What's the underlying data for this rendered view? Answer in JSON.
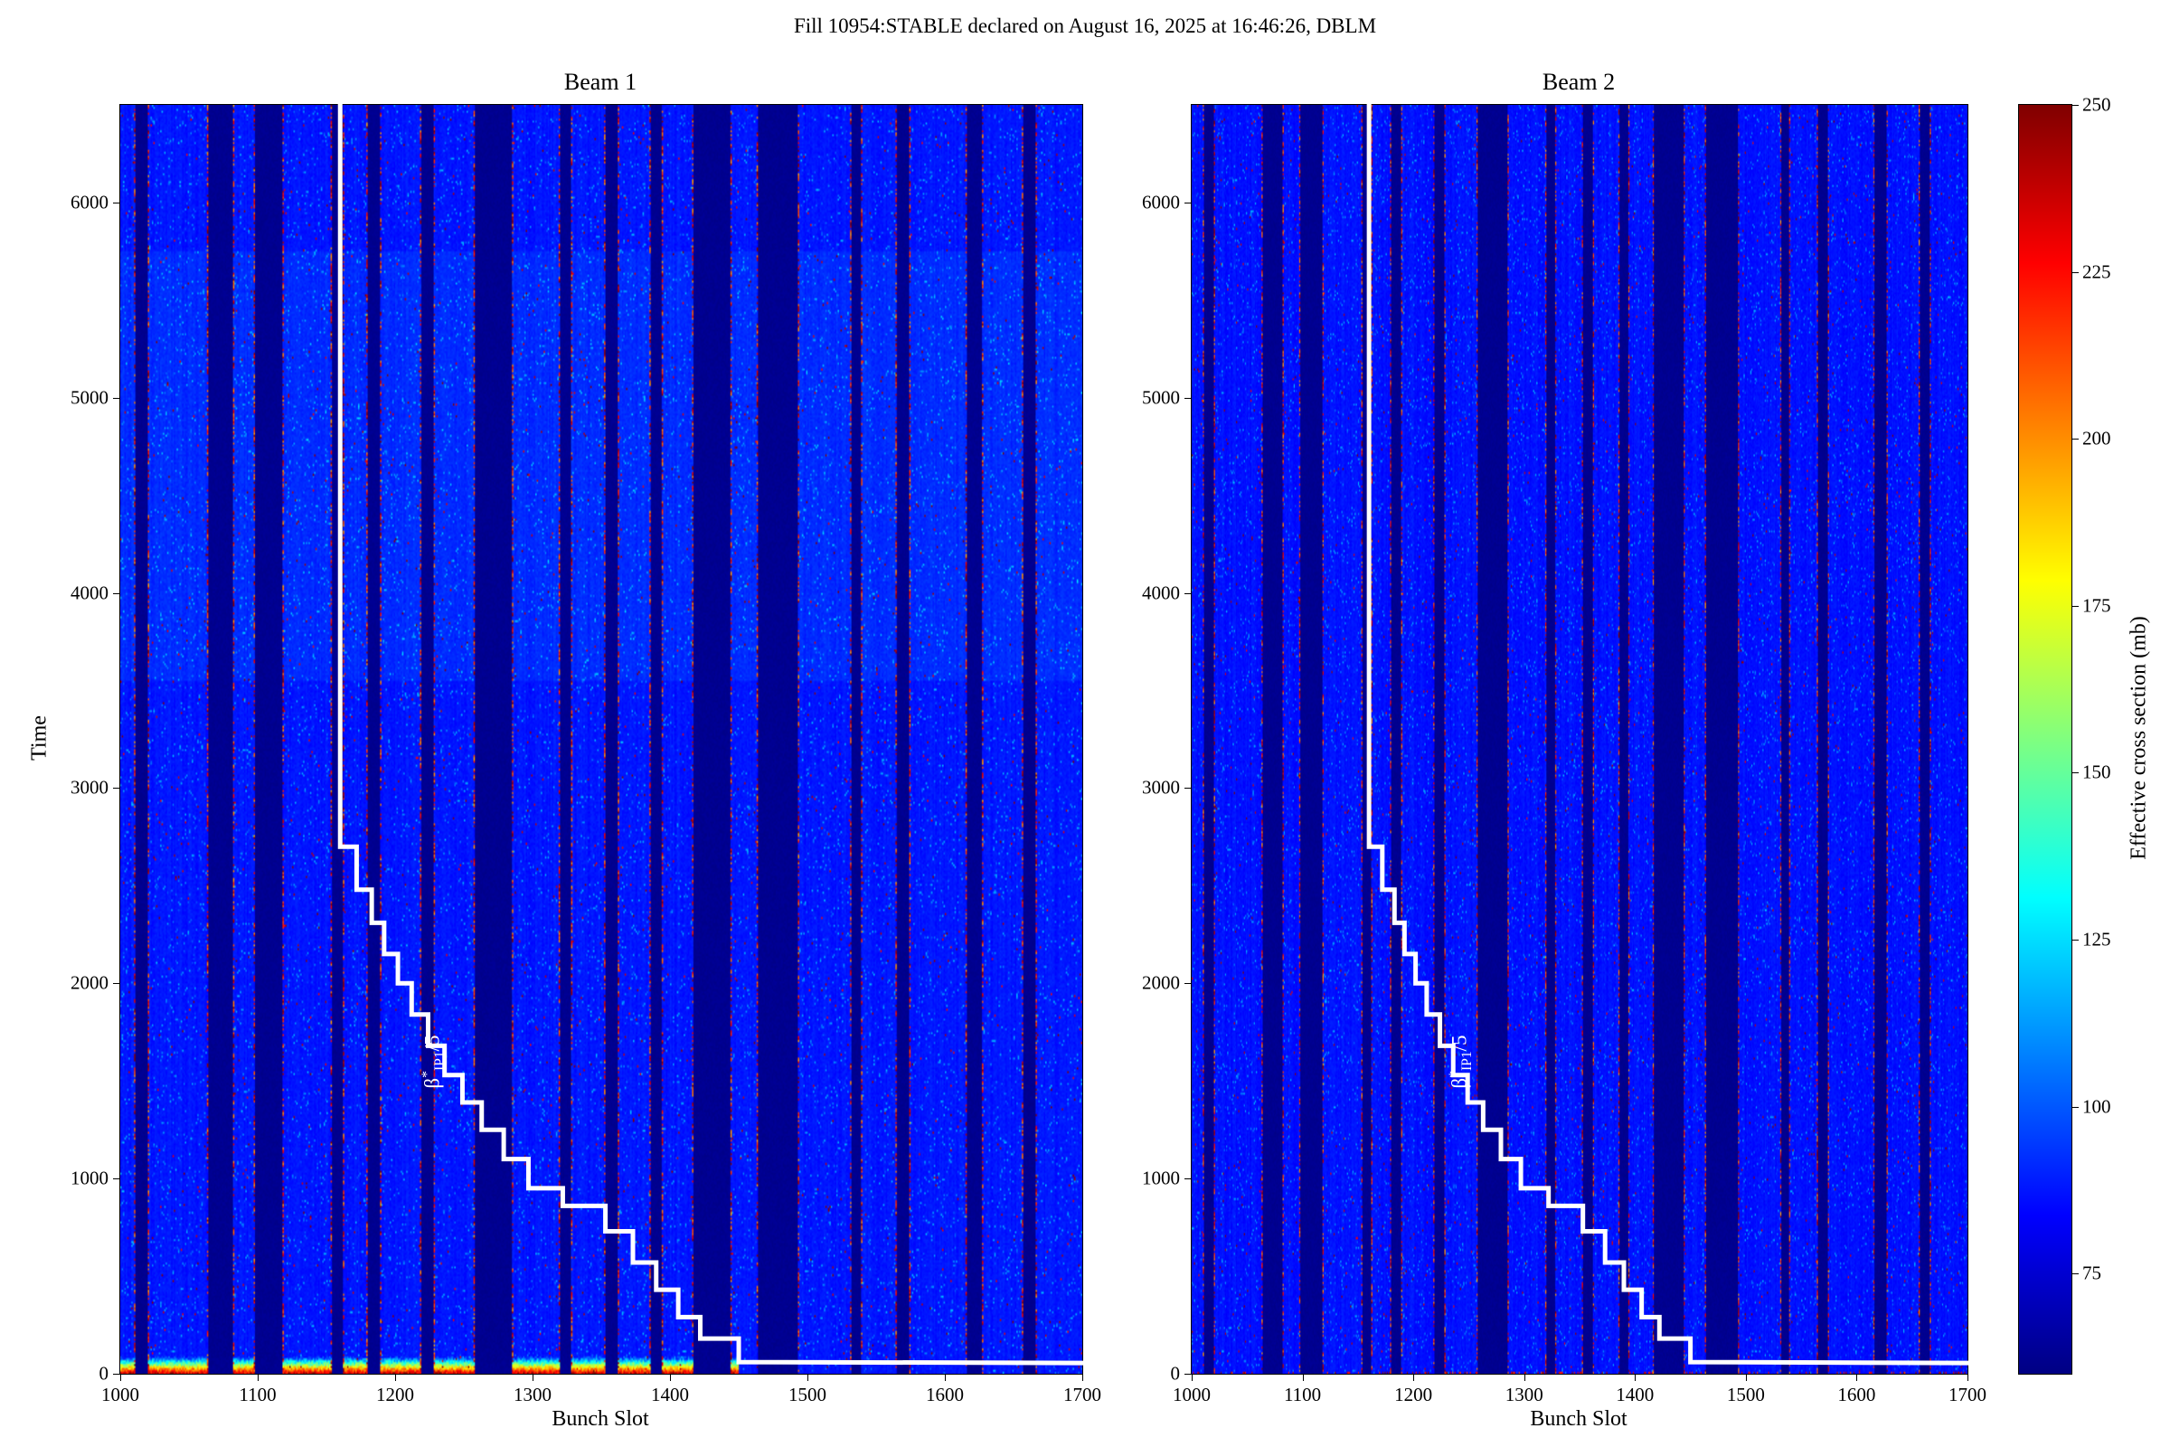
{
  "figure": {
    "suptitle": "Fill 10954:STABLE declared on August 16, 2025 at 16:46:26, DBLM",
    "background": "#ffffff"
  },
  "axes": {
    "x": {
      "label": "Bunch Slot",
      "min": 1000,
      "max": 1700,
      "ticks": [
        1000,
        1100,
        1200,
        1300,
        1400,
        1500,
        1600,
        1700
      ]
    },
    "y": {
      "label": "Time",
      "min": 0,
      "max": 6500,
      "ticks": [
        0,
        1000,
        2000,
        3000,
        4000,
        5000,
        6000
      ]
    }
  },
  "colorbar": {
    "label": "Effective cross section (mb)",
    "min": 60,
    "max": 250,
    "ticks": [
      75,
      100,
      125,
      150,
      175,
      200,
      225,
      250
    ],
    "colormap": "jet",
    "stops": [
      [
        0,
        "#000083"
      ],
      [
        0.125,
        "#0000ff"
      ],
      [
        0.375,
        "#00ffff"
      ],
      [
        0.625,
        "#ffff00"
      ],
      [
        0.875,
        "#ff0000"
      ],
      [
        1,
        "#800000"
      ]
    ]
  },
  "chart_data": [
    {
      "type": "heatmap",
      "title": "Beam 1",
      "xlabel": "Bunch Slot",
      "ylabel": "Time",
      "xlim": [
        1000,
        1700
      ],
      "ylim": [
        0,
        6500
      ],
      "value_label": "Effective cross section (mb)",
      "vmin": 60,
      "vmax": 250,
      "colormap": "jet",
      "base_value": 86,
      "gap_value": 62,
      "bunch_gaps": [
        [
          1011,
          1019
        ],
        [
          1064,
          1081
        ],
        [
          1098,
          1117
        ],
        [
          1154,
          1161
        ],
        [
          1180,
          1188
        ],
        [
          1219,
          1227
        ],
        [
          1258,
          1284
        ],
        [
          1320,
          1327
        ],
        [
          1353,
          1361
        ],
        [
          1386,
          1393
        ],
        [
          1417,
          1443
        ],
        [
          1464,
          1492
        ],
        [
          1532,
          1538
        ],
        [
          1565,
          1573
        ],
        [
          1616,
          1626
        ],
        [
          1657,
          1665
        ]
      ],
      "hot_bottom": {
        "max_time": 115,
        "max_slot": 1450,
        "peak_value": 258,
        "fade_per_time_unit": 1.8
      },
      "band_boost": {
        "time_range": [
          3550,
          5750
        ],
        "amount": 3
      },
      "bottom_speckle": false,
      "overlay_line": {
        "color": "#ffffff",
        "points": [
          [
            1160,
            6500
          ],
          [
            1160,
            2700
          ],
          [
            1172,
            2700
          ],
          [
            1172,
            2480
          ],
          [
            1183,
            2480
          ],
          [
            1183,
            2310
          ],
          [
            1192,
            2310
          ],
          [
            1192,
            2150
          ],
          [
            1202,
            2150
          ],
          [
            1202,
            2000
          ],
          [
            1212,
            2000
          ],
          [
            1212,
            1840
          ],
          [
            1224,
            1840
          ],
          [
            1224,
            1680
          ],
          [
            1236,
            1680
          ],
          [
            1236,
            1530
          ],
          [
            1249,
            1530
          ],
          [
            1249,
            1390
          ],
          [
            1263,
            1390
          ],
          [
            1263,
            1250
          ],
          [
            1279,
            1250
          ],
          [
            1279,
            1100
          ],
          [
            1297,
            1100
          ],
          [
            1297,
            950
          ],
          [
            1322,
            950
          ],
          [
            1322,
            860
          ],
          [
            1353,
            860
          ],
          [
            1353,
            730
          ],
          [
            1373,
            730
          ],
          [
            1373,
            570
          ],
          [
            1390,
            570
          ],
          [
            1390,
            430
          ],
          [
            1406,
            430
          ],
          [
            1406,
            290
          ],
          [
            1422,
            290
          ],
          [
            1422,
            180
          ],
          [
            1450,
            180
          ],
          [
            1450,
            60
          ],
          [
            1700,
            55
          ]
        ]
      },
      "annotation": {
        "base": "β",
        "sup": "*",
        "sub": "IP1",
        "rest": "/5",
        "x": 1228,
        "y": 1600,
        "color": "#ffffff"
      }
    },
    {
      "type": "heatmap",
      "title": "Beam 2",
      "xlabel": "Bunch Slot",
      "ylabel": "Time",
      "xlim": [
        1000,
        1700
      ],
      "ylim": [
        0,
        6500
      ],
      "value_label": "Effective cross section (mb)",
      "vmin": 60,
      "vmax": 250,
      "colormap": "jet",
      "base_value": 85,
      "gap_value": 62,
      "bunch_gaps": [
        [
          1011,
          1019
        ],
        [
          1064,
          1081
        ],
        [
          1098,
          1117
        ],
        [
          1154,
          1161
        ],
        [
          1180,
          1188
        ],
        [
          1219,
          1227
        ],
        [
          1258,
          1284
        ],
        [
          1320,
          1327
        ],
        [
          1353,
          1361
        ],
        [
          1386,
          1393
        ],
        [
          1417,
          1443
        ],
        [
          1464,
          1492
        ],
        [
          1532,
          1538
        ],
        [
          1565,
          1573
        ],
        [
          1616,
          1626
        ],
        [
          1657,
          1665
        ]
      ],
      "hot_bottom": null,
      "band_boost": null,
      "bottom_speckle": true,
      "overlay_line": {
        "color": "#ffffff",
        "points": [
          [
            1160,
            6500
          ],
          [
            1160,
            2700
          ],
          [
            1172,
            2700
          ],
          [
            1172,
            2480
          ],
          [
            1183,
            2480
          ],
          [
            1183,
            2310
          ],
          [
            1192,
            2310
          ],
          [
            1192,
            2150
          ],
          [
            1202,
            2150
          ],
          [
            1202,
            2000
          ],
          [
            1212,
            2000
          ],
          [
            1212,
            1840
          ],
          [
            1224,
            1840
          ],
          [
            1224,
            1680
          ],
          [
            1236,
            1680
          ],
          [
            1236,
            1530
          ],
          [
            1249,
            1530
          ],
          [
            1249,
            1390
          ],
          [
            1263,
            1390
          ],
          [
            1263,
            1250
          ],
          [
            1279,
            1250
          ],
          [
            1279,
            1100
          ],
          [
            1297,
            1100
          ],
          [
            1297,
            950
          ],
          [
            1322,
            950
          ],
          [
            1322,
            860
          ],
          [
            1353,
            860
          ],
          [
            1353,
            730
          ],
          [
            1373,
            730
          ],
          [
            1373,
            570
          ],
          [
            1390,
            570
          ],
          [
            1390,
            430
          ],
          [
            1406,
            430
          ],
          [
            1406,
            290
          ],
          [
            1422,
            290
          ],
          [
            1422,
            180
          ],
          [
            1450,
            180
          ],
          [
            1450,
            60
          ],
          [
            1700,
            55
          ]
        ]
      },
      "annotation": {
        "base": "β",
        "sup": "*",
        "sub": "IP1",
        "rest": "/5",
        "x": 1243,
        "y": 1600,
        "color": "#ffffff"
      }
    }
  ]
}
